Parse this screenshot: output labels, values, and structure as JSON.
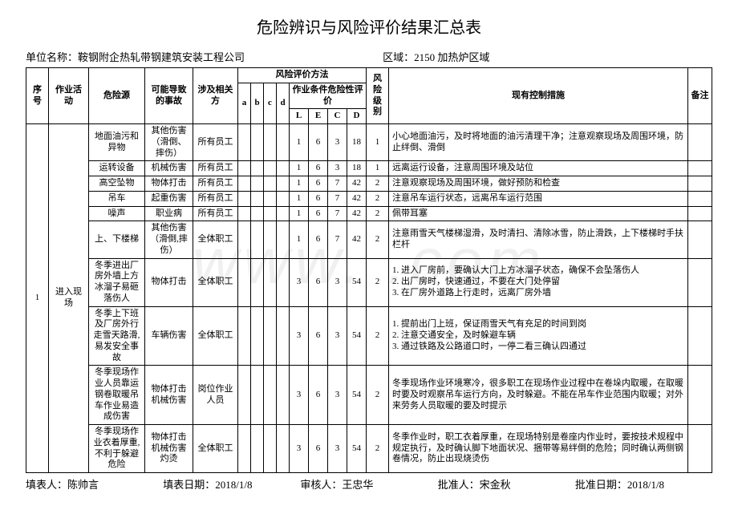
{
  "title": "危险辨识与风险评价结果汇总表",
  "meta": {
    "unit_label": "单位名称：",
    "unit_value": "鞍钢附企热轧带钢建筑安装工程公司",
    "area_label": "区域：",
    "area_value": "2150 加热炉区域"
  },
  "headers": {
    "seq": "序号",
    "activity": "作业活动",
    "source": "危险源",
    "accident": "可能导致的事故",
    "party": "涉及相关方",
    "method": "风险评价方法",
    "level": "风险级别",
    "control": "现有控制措施",
    "note": "备注",
    "a": "a",
    "b": "b",
    "c": "c",
    "d": "d",
    "cond": "作业条件危险性评价",
    "L": "L",
    "E": "E",
    "C": "C",
    "D": "D"
  },
  "group": {
    "seq": "1",
    "activity": "进入现场"
  },
  "rows": [
    {
      "source": "地面油污和异物",
      "accident": "其他伤害（滑倒、摔伤）",
      "party": "所有员工",
      "L": "1",
      "E": "6",
      "C": "3",
      "D": "18",
      "lvl": "1",
      "ctrl": "小心地面油污，及时将地面的油污清理干净；注意观察现场及周围环境，防止绊倒、滑倒"
    },
    {
      "source": "运转设备",
      "accident": "机械伤害",
      "party": "所有员工",
      "L": "1",
      "E": "6",
      "C": "3",
      "D": "18",
      "lvl": "1",
      "ctrl": "远离运行设备，注意周围环境及站位"
    },
    {
      "source": "高空坠物",
      "accident": "物体打击",
      "party": "所有员工",
      "L": "1",
      "E": "6",
      "C": "7",
      "D": "42",
      "lvl": "2",
      "ctrl": "注意观察现场及周围环境，做好预防和检查"
    },
    {
      "source": "吊车",
      "accident": "起重伤害",
      "party": "所有员工",
      "L": "1",
      "E": "6",
      "C": "7",
      "D": "42",
      "lvl": "2",
      "ctrl": "注意吊车运行状态，远离吊车运行范围"
    },
    {
      "source": "噪声",
      "accident": "职业病",
      "party": "所有员工",
      "L": "1",
      "E": "6",
      "C": "7",
      "D": "42",
      "lvl": "2",
      "ctrl": "佩带耳塞"
    },
    {
      "source": "上、下楼梯",
      "accident": "其他伤害（滑倒,摔伤）",
      "party": "全体职工",
      "L": "1",
      "E": "6",
      "C": "7",
      "D": "42",
      "lvl": "2",
      "ctrl": "注意雨雪天气楼梯湿滑，及时清扫、清除冰雪，防止滑跌，上下楼梯时手扶栏杆"
    },
    {
      "source": "冬季进出厂房外墙上方冰溜子易砸落伤人",
      "accident": "物体打击",
      "party": "全体职工",
      "L": "3",
      "E": "6",
      "C": "3",
      "D": "54",
      "lvl": "2",
      "ctrl": "1. 进入厂房前，要确认大门上方冰溜子状态，确保不会坠落伤人\n2. 出厂房时，快速通过，不要在大门处停留\n3. 在厂房外道路上行走时，远离厂房外墙"
    },
    {
      "source": "冬季上下班及厂房外行走雪天路滑,易发安全事故",
      "accident": "车辆伤害",
      "party": "全体职工",
      "L": "3",
      "E": "6",
      "C": "3",
      "D": "54",
      "lvl": "2",
      "ctrl": "1. 提前出门上班，保证雨雪天气有充足的时间到岗\n2. 注意交通安全，及时躲避车辆\n3. 通过铁路及公路道口时，一停二看三确认四通过"
    },
    {
      "source": "冬季现场作业人员靠运钢卷取暖吊车作业易造成伤害",
      "accident": "物体打击\n机械伤害",
      "party": "岗位作业人员",
      "L": "3",
      "E": "6",
      "C": "3",
      "D": "54",
      "lvl": "2",
      "ctrl": "冬季现场作业环境寒冷，很多职工在现场作业过程中在卷垛内取暖，在取暖时要及时观察吊车运行方向，及时躲避。不能在吊车作业范围内取暖；对外来劳务人员取暖的要及时提示"
    },
    {
      "source": "冬季现场作业衣着厚重,不利于躲避危险",
      "accident": "物体打击\n机械伤害\n灼烫",
      "party": "全体职工",
      "L": "3",
      "E": "6",
      "C": "3",
      "D": "54",
      "lvl": "2",
      "ctrl": "冬季作业时，职工衣着厚重，在现场特别是卷座内作业时，要按技术规程中规定执行，及时确认脚下地面状况、捆带等易绊倒的危险；同时确认两侧钢卷情况，防止出现烧烫伤"
    }
  ],
  "footer": {
    "filler_label": "填表人：",
    "filler": "陈帅言",
    "fill_date_label": "填表日期：",
    "fill_date": "2018/1/8",
    "reviewer_label": "审核人：",
    "reviewer": "王忠华",
    "approver_label": "批准人：",
    "approver": "宋金秋",
    "approve_date_label": "批准日期：",
    "approve_date": "2018/1/8"
  },
  "watermark": "www.         .com"
}
